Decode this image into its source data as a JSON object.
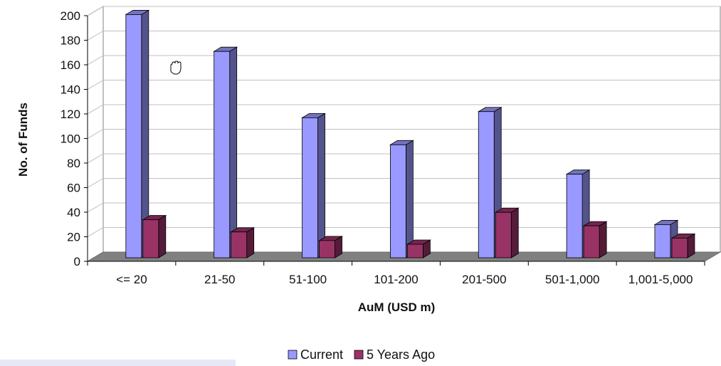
{
  "chart_data": {
    "type": "bar",
    "style": "3d-clustered-column",
    "categories": [
      "<= 20",
      "21-50",
      "51-100",
      "101-200",
      "201-500",
      "501-1,000",
      "1,001-5,000"
    ],
    "series": [
      {
        "name": "Current",
        "values": [
          198,
          168,
          114,
          92,
          119,
          68,
          27
        ],
        "color": "#9999ff"
      },
      {
        "name": "5 Years Ago",
        "values": [
          31,
          21,
          14,
          11,
          37,
          26,
          16
        ],
        "color": "#993366"
      }
    ],
    "xlabel": "AuM (USD m)",
    "ylabel": "No. of Funds",
    "ylim": [
      0,
      200
    ],
    "yticks": [
      0,
      20,
      40,
      60,
      80,
      100,
      120,
      140,
      160,
      180,
      200
    ],
    "grid": true,
    "legend_position": "bottom-center",
    "floor_color": "#808080",
    "gridline_color": "#c0c0c0"
  }
}
